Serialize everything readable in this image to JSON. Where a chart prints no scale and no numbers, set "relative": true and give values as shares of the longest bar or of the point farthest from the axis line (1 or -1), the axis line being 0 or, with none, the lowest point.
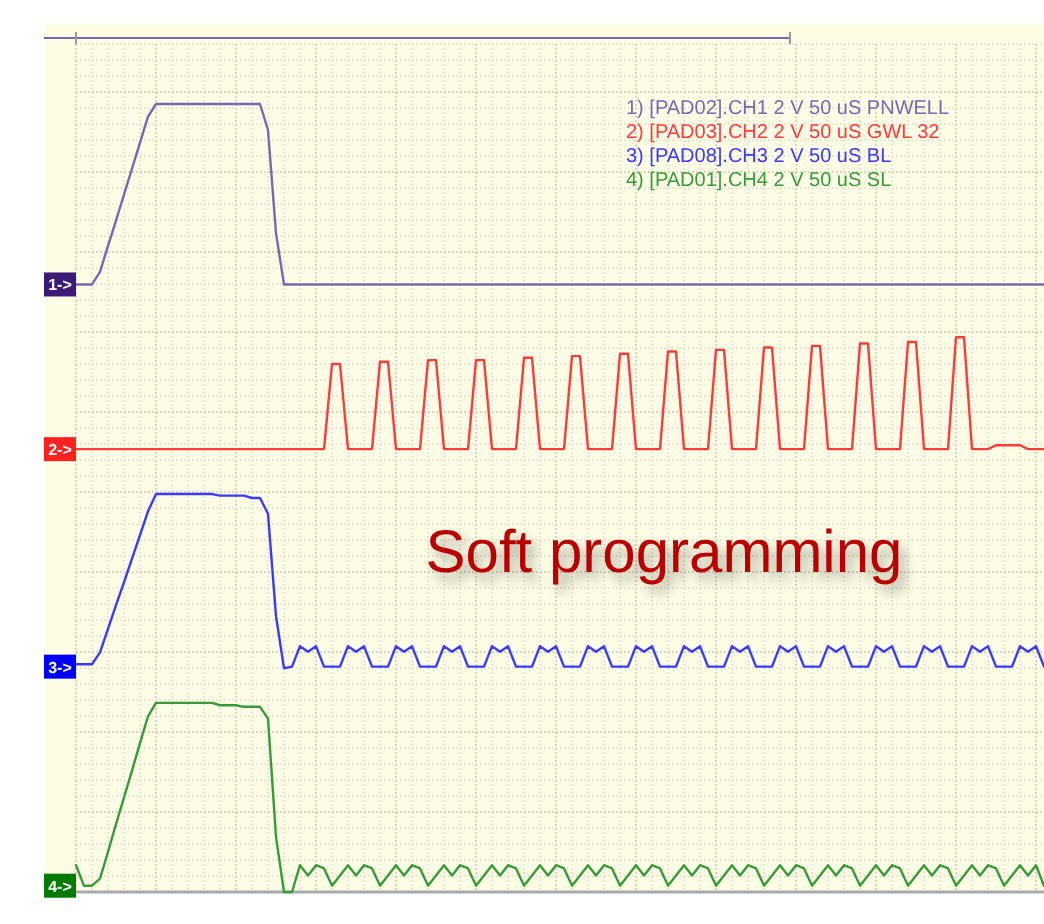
{
  "chart_data": {
    "type": "line",
    "title": "Soft programming",
    "relative": true,
    "grid": true,
    "legend": "top right",
    "marker": "none",
    "line_style": "solid",
    "categories": [
      null,
      null,
      null,
      null,
      null,
      null,
      null,
      null,
      null,
      null,
      null,
      null,
      null,
      null,
      null,
      null,
      null,
      null,
      null,
      null,
      null,
      null,
      null,
      null,
      null,
      null,
      null,
      null,
      null,
      null,
      null,
      null,
      null,
      null,
      null,
      null,
      null,
      null,
      null,
      null,
      null,
      null,
      null,
      null,
      null,
      null,
      null,
      null,
      null,
      null,
      null,
      null,
      null,
      null,
      null,
      null,
      null,
      null,
      null,
      null,
      null,
      null,
      null,
      null,
      null,
      null,
      null,
      null,
      null,
      null,
      null,
      null,
      null,
      null,
      null,
      null,
      null,
      null,
      null,
      null,
      null,
      null,
      null,
      null,
      null,
      null,
      null,
      null,
      null,
      null,
      null,
      null,
      null,
      null,
      null,
      null,
      null,
      null,
      null,
      null,
      null,
      null,
      null,
      null,
      null,
      null,
      null,
      null,
      null,
      null,
      null,
      null,
      null,
      null,
      null,
      null,
      null,
      null,
      null,
      null,
      null,
      null
    ],
    "annotations": [
      "1->",
      "2->",
      "3->",
      "4->"
    ],
    "series": [
      {
        "name": "1) [PAD02].CH1 2 V 50 uS PNWELL",
        "color": "#7a68b0",
        "values": [
          0.771,
          0.771,
          0.771,
          0.787,
          0.82,
          0.852,
          0.885,
          0.918,
          0.951,
          0.984,
          1,
          1,
          1,
          1,
          1,
          1,
          1,
          1,
          1,
          1,
          1,
          1,
          1,
          1,
          0.967,
          0.836,
          0.771,
          0.771,
          0.771,
          0.771,
          0.771,
          0.771,
          0.771,
          0.771,
          0.771,
          0.771,
          0.771,
          0.771,
          0.771,
          0.771,
          0.771,
          0.771,
          0.771,
          0.771,
          0.771,
          0.771,
          0.771,
          0.771,
          0.771,
          0.771,
          0.771,
          0.771,
          0.771,
          0.771,
          0.771,
          0.771,
          0.771,
          0.771,
          0.771,
          0.771,
          0.771,
          0.771,
          0.771,
          0.771,
          0.771,
          0.771,
          0.771,
          0.771,
          0.771,
          0.771,
          0.771,
          0.771,
          0.771,
          0.771,
          0.771,
          0.771,
          0.771,
          0.771,
          0.771,
          0.771,
          0.771,
          0.771,
          0.771,
          0.771,
          0.771,
          0.771,
          0.771,
          0.771,
          0.771,
          0.771,
          0.771,
          0.771,
          0.771,
          0.771,
          0.771,
          0.771,
          0.771,
          0.771,
          0.771,
          0.771,
          0.771,
          0.771,
          0.771,
          0.771,
          0.771,
          0.771,
          0.771,
          0.771,
          0.771,
          0.771,
          0.771,
          0.771,
          0.771,
          0.771,
          0.771,
          0.771,
          0.771,
          0.771,
          0.771,
          0.771,
          0.771,
          0.771
        ]
      },
      {
        "name": "2) [PAD03].CH2 2 V 50 uS GWL 32",
        "color": "#ff3b3b",
        "values": [
          0.562,
          0.562,
          0.562,
          0.562,
          0.562,
          0.562,
          0.562,
          0.562,
          0.562,
          0.562,
          0.562,
          0.562,
          0.562,
          0.562,
          0.562,
          0.562,
          0.562,
          0.562,
          0.562,
          0.562,
          0.562,
          0.562,
          0.562,
          0.562,
          0.562,
          0.562,
          0.562,
          0.562,
          0.562,
          0.562,
          0.562,
          0.562,
          0.67,
          0.67,
          0.562,
          0.562,
          0.562,
          0.562,
          0.673,
          0.673,
          0.562,
          0.562,
          0.562,
          0.562,
          0.675,
          0.675,
          0.562,
          0.562,
          0.562,
          0.562,
          0.675,
          0.675,
          0.562,
          0.562,
          0.562,
          0.562,
          0.678,
          0.678,
          0.562,
          0.562,
          0.562,
          0.562,
          0.68,
          0.68,
          0.562,
          0.562,
          0.562,
          0.562,
          0.683,
          0.683,
          0.562,
          0.562,
          0.562,
          0.562,
          0.686,
          0.686,
          0.562,
          0.562,
          0.562,
          0.562,
          0.688,
          0.688,
          0.562,
          0.562,
          0.562,
          0.562,
          0.691,
          0.691,
          0.562,
          0.562,
          0.562,
          0.562,
          0.693,
          0.693,
          0.562,
          0.562,
          0.562,
          0.562,
          0.696,
          0.696,
          0.562,
          0.562,
          0.562,
          0.562,
          0.698,
          0.698,
          0.562,
          0.562,
          0.562,
          0.562,
          0.704,
          0.704,
          0.562,
          0.562,
          0.562,
          0.567,
          0.567,
          0.567,
          0.567,
          0.562,
          0.562,
          0.562
        ]
      },
      {
        "name": "3) [PAD08].CH3 2 V 50 uS BL",
        "color": "#3a3aff",
        "values": [
          0.289,
          0.289,
          0.289,
          0.304,
          0.334,
          0.364,
          0.393,
          0.423,
          0.453,
          0.483,
          0.505,
          0.505,
          0.505,
          0.505,
          0.505,
          0.505,
          0.505,
          0.505,
          0.503,
          0.503,
          0.503,
          0.503,
          0.5,
          0.5,
          0.48,
          0.35,
          0.284,
          0.286,
          0.312,
          0.305,
          0.312,
          0.286,
          0.286,
          0.286,
          0.312,
          0.305,
          0.312,
          0.286,
          0.286,
          0.286,
          0.312,
          0.305,
          0.312,
          0.286,
          0.286,
          0.286,
          0.312,
          0.305,
          0.312,
          0.286,
          0.286,
          0.286,
          0.312,
          0.305,
          0.312,
          0.286,
          0.286,
          0.286,
          0.312,
          0.305,
          0.312,
          0.286,
          0.286,
          0.286,
          0.312,
          0.305,
          0.312,
          0.286,
          0.286,
          0.286,
          0.312,
          0.305,
          0.312,
          0.286,
          0.286,
          0.286,
          0.312,
          0.305,
          0.312,
          0.286,
          0.286,
          0.286,
          0.312,
          0.305,
          0.312,
          0.286,
          0.286,
          0.286,
          0.312,
          0.305,
          0.312,
          0.286,
          0.286,
          0.286,
          0.312,
          0.305,
          0.312,
          0.286,
          0.286,
          0.286,
          0.312,
          0.305,
          0.312,
          0.286,
          0.286,
          0.286,
          0.312,
          0.305,
          0.312,
          0.286,
          0.286,
          0.286,
          0.312,
          0.305,
          0.312,
          0.286,
          0.286,
          0.286,
          0.312,
          0.305,
          0.312,
          0.286
        ]
      },
      {
        "name": "4) [PAD01].CH4 2 V 50 uS SL",
        "color": "#3a9a3a",
        "values": [
          0.034,
          0.008,
          0.008,
          0.017,
          0.051,
          0.086,
          0.12,
          0.154,
          0.189,
          0.223,
          0.24,
          0.24,
          0.24,
          0.24,
          0.24,
          0.24,
          0.24,
          0.24,
          0.237,
          0.237,
          0.237,
          0.235,
          0.235,
          0.235,
          0.22,
          0.07,
          0,
          0,
          0.034,
          0.021,
          0.034,
          0.03,
          0.008,
          0.021,
          0.034,
          0.021,
          0.034,
          0.03,
          0.008,
          0.021,
          0.034,
          0.021,
          0.034,
          0.03,
          0.008,
          0.021,
          0.034,
          0.021,
          0.034,
          0.03,
          0.008,
          0.021,
          0.034,
          0.021,
          0.034,
          0.03,
          0.008,
          0.021,
          0.034,
          0.021,
          0.034,
          0.03,
          0.008,
          0.021,
          0.034,
          0.021,
          0.034,
          0.03,
          0.008,
          0.021,
          0.034,
          0.021,
          0.034,
          0.03,
          0.008,
          0.021,
          0.034,
          0.021,
          0.034,
          0.03,
          0.008,
          0.021,
          0.034,
          0.021,
          0.034,
          0.03,
          0.008,
          0.021,
          0.034,
          0.021,
          0.034,
          0.03,
          0.008,
          0.021,
          0.034,
          0.021,
          0.034,
          0.03,
          0.008,
          0.021,
          0.034,
          0.021,
          0.034,
          0.03,
          0.008,
          0.021,
          0.034,
          0.021,
          0.034,
          0.03,
          0.008,
          0.021,
          0.034,
          0.021,
          0.034,
          0.03,
          0.008,
          0.021,
          0.034,
          0.021,
          0.034,
          0.008
        ]
      }
    ]
  }
}
